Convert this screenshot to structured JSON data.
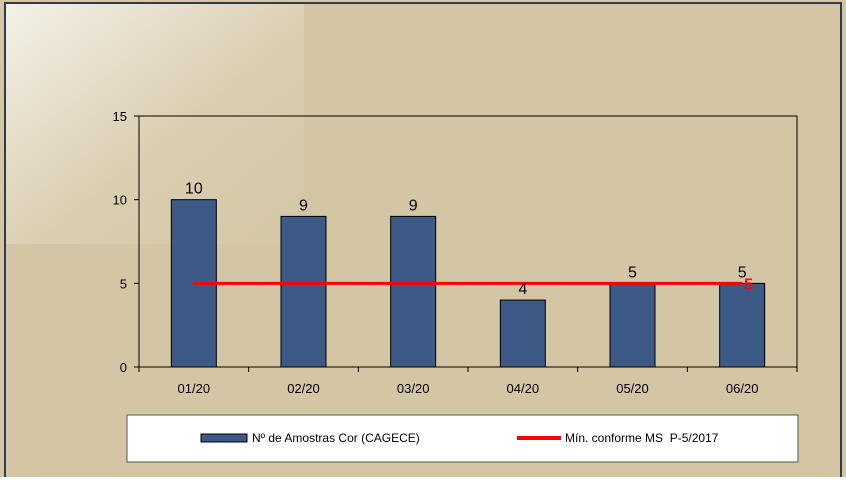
{
  "chart_data": {
    "type": "bar",
    "categories": [
      "01/20",
      "02/20",
      "03/20",
      "04/20",
      "05/20",
      "06/20"
    ],
    "series": [
      {
        "name": "Nº de Amostras Cor (CAGECE)",
        "type": "bar",
        "values": [
          10,
          9,
          9,
          4,
          5,
          5
        ],
        "color": "#3d5a87"
      },
      {
        "name": "Mín. conforme MS  P-5/2017",
        "type": "line",
        "values": [
          5,
          5,
          5,
          5,
          5,
          5
        ],
        "color": "#ff0000"
      }
    ],
    "data_labels": [
      "10",
      "9",
      "9",
      "4",
      "5",
      "5"
    ],
    "line_end_label": "5",
    "ylim": [
      0,
      15
    ],
    "yticks": [
      "0",
      "5",
      "10",
      "15"
    ],
    "legend_position": "bottom",
    "grid": false
  },
  "colors": {
    "page_background": "#d4c6a4",
    "frame_border": "#2d3c4e",
    "bar": "#3d5a87",
    "line": "#ff0000",
    "legend_background": "#ffffff"
  }
}
